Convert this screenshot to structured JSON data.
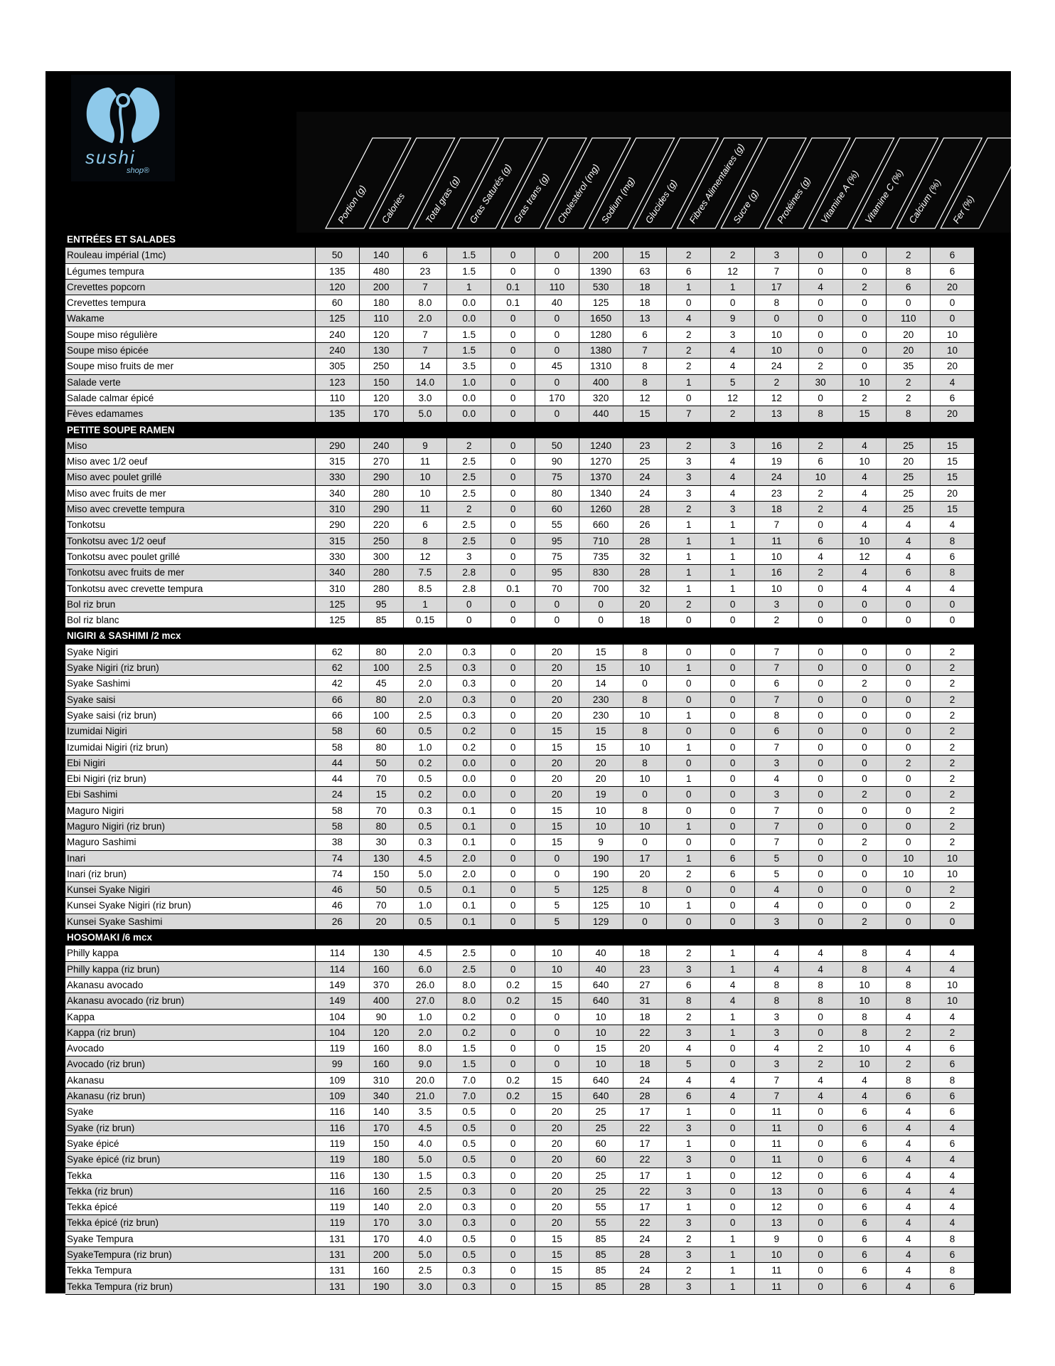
{
  "brand": {
    "logo_text": "sushi",
    "logo_subtext": "shop®",
    "logo_color": "#8ec9ea"
  },
  "columns": [
    "Portion (g)",
    "Calories",
    "Total gras (g)",
    "Gras Saturés (g)",
    "Gras trans (g)",
    "Cholestérol (mg)",
    "Sodium (mg)",
    "Glucides (g)",
    "Fibres Alimentaires (g)",
    "Sucre (g)",
    "Protéines (g)",
    "Vitamine A (%)",
    "Vitamine C (%)",
    "Calcium (%)",
    "Fer (%)"
  ],
  "sections": [
    {
      "title": "ENTRÉES ET SALADES",
      "rows": [
        [
          "Rouleau impérial (1mc)",
          "50",
          "140",
          "6",
          "1.5",
          "0",
          "0",
          "200",
          "15",
          "2",
          "2",
          "3",
          "0",
          "0",
          "2",
          "6"
        ],
        [
          "Légumes tempura",
          "135",
          "480",
          "23",
          "1.5",
          "0",
          "0",
          "1390",
          "63",
          "6",
          "12",
          "7",
          "0",
          "0",
          "8",
          "6"
        ],
        [
          "Crevettes popcorn",
          "120",
          "200",
          "7",
          "1",
          "0.1",
          "110",
          "530",
          "18",
          "1",
          "1",
          "17",
          "4",
          "2",
          "6",
          "20"
        ],
        [
          "Crevettes tempura",
          "60",
          "180",
          "8.0",
          "0.0",
          "0.1",
          "40",
          "125",
          "18",
          "0",
          "0",
          "8",
          "0",
          "0",
          "0",
          "0"
        ],
        [
          "Wakame",
          "125",
          "110",
          "2.0",
          "0.0",
          "0",
          "0",
          "1650",
          "13",
          "4",
          "9",
          "0",
          "0",
          "0",
          "110",
          "0"
        ],
        [
          "Soupe miso régulière",
          "240",
          "120",
          "7",
          "1.5",
          "0",
          "0",
          "1280",
          "6",
          "2",
          "3",
          "10",
          "0",
          "0",
          "20",
          "10"
        ],
        [
          "Soupe miso épicée",
          "240",
          "130",
          "7",
          "1.5",
          "0",
          "0",
          "1380",
          "7",
          "2",
          "4",
          "10",
          "0",
          "0",
          "20",
          "10"
        ],
        [
          "Soupe miso fruits de mer",
          "305",
          "250",
          "14",
          "3.5",
          "0",
          "45",
          "1310",
          "8",
          "2",
          "4",
          "24",
          "2",
          "0",
          "35",
          "20"
        ],
        [
          "Salade verte",
          "123",
          "150",
          "14.0",
          "1.0",
          "0",
          "0",
          "400",
          "8",
          "1",
          "5",
          "2",
          "30",
          "10",
          "2",
          "4"
        ],
        [
          "Salade calmar épicé",
          "110",
          "120",
          "3.0",
          "0.0",
          "0",
          "170",
          "320",
          "12",
          "0",
          "12",
          "12",
          "0",
          "2",
          "2",
          "6"
        ],
        [
          "Fèves edamames",
          "135",
          "170",
          "5.0",
          "0.0",
          "0",
          "0",
          "440",
          "15",
          "7",
          "2",
          "13",
          "8",
          "15",
          "8",
          "20"
        ]
      ]
    },
    {
      "title": "PETITE SOUPE RAMEN",
      "rows": [
        [
          "Miso",
          "290",
          "240",
          "9",
          "2",
          "0",
          "50",
          "1240",
          "23",
          "2",
          "3",
          "16",
          "2",
          "4",
          "25",
          "15"
        ],
        [
          "Miso avec 1/2 oeuf",
          "315",
          "270",
          "11",
          "2.5",
          "0",
          "90",
          "1270",
          "25",
          "3",
          "4",
          "19",
          "6",
          "10",
          "20",
          "15"
        ],
        [
          "Miso avec poulet grillé",
          "330",
          "290",
          "10",
          "2.5",
          "0",
          "75",
          "1370",
          "24",
          "3",
          "4",
          "24",
          "10",
          "4",
          "25",
          "15"
        ],
        [
          "Miso avec fruits de mer",
          "340",
          "280",
          "10",
          "2.5",
          "0",
          "80",
          "1340",
          "24",
          "3",
          "4",
          "23",
          "2",
          "4",
          "25",
          "20"
        ],
        [
          "Miso avec crevette tempura",
          "310",
          "290",
          "11",
          "2",
          "0",
          "60",
          "1260",
          "28",
          "2",
          "3",
          "18",
          "2",
          "4",
          "25",
          "15"
        ],
        [
          "Tonkotsu",
          "290",
          "220",
          "6",
          "2.5",
          "0",
          "55",
          "660",
          "26",
          "1",
          "1",
          "7",
          "0",
          "4",
          "4",
          "4"
        ],
        [
          "Tonkotsu avec 1/2 oeuf",
          "315",
          "250",
          "8",
          "2.5",
          "0",
          "95",
          "710",
          "28",
          "1",
          "1",
          "11",
          "6",
          "10",
          "4",
          "8"
        ],
        [
          "Tonkotsu avec poulet grillé",
          "330",
          "300",
          "12",
          "3",
          "0",
          "75",
          "735",
          "32",
          "1",
          "1",
          "10",
          "4",
          "12",
          "4",
          "6"
        ],
        [
          "Tonkotsu avec fruits de mer",
          "340",
          "280",
          "7.5",
          "2.8",
          "0",
          "95",
          "830",
          "28",
          "1",
          "1",
          "16",
          "2",
          "4",
          "6",
          "8"
        ],
        [
          "Tonkotsu avec crevette tempura",
          "310",
          "280",
          "8.5",
          "2.8",
          "0.1",
          "70",
          "700",
          "32",
          "1",
          "1",
          "10",
          "0",
          "4",
          "4",
          "4"
        ],
        [
          "Bol riz brun",
          "125",
          "95",
          "1",
          "0",
          "0",
          "0",
          "0",
          "20",
          "2",
          "0",
          "3",
          "0",
          "0",
          "0",
          "0"
        ],
        [
          "Bol riz blanc",
          "125",
          "85",
          "0.15",
          "0",
          "0",
          "0",
          "0",
          "18",
          "0",
          "0",
          "2",
          "0",
          "0",
          "0",
          "0"
        ]
      ]
    },
    {
      "title": "NIGIRI & SASHIMI /2 mcx",
      "rows": [
        [
          "Syake Nigiri",
          "62",
          "80",
          "2.0",
          "0.3",
          "0",
          "20",
          "15",
          "8",
          "0",
          "0",
          "7",
          "0",
          "0",
          "0",
          "2"
        ],
        [
          "Syake Nigiri (riz brun)",
          "62",
          "100",
          "2.5",
          "0.3",
          "0",
          "20",
          "15",
          "10",
          "1",
          "0",
          "7",
          "0",
          "0",
          "0",
          "2"
        ],
        [
          "Syake Sashimi",
          "42",
          "45",
          "2.0",
          "0.3",
          "0",
          "20",
          "14",
          "0",
          "0",
          "0",
          "6",
          "0",
          "2",
          "0",
          "2"
        ],
        [
          "Syake saisi",
          "66",
          "80",
          "2.0",
          "0.3",
          "0",
          "20",
          "230",
          "8",
          "0",
          "0",
          "7",
          "0",
          "0",
          "0",
          "2"
        ],
        [
          "Syake saisi   (riz brun)",
          "66",
          "100",
          "2.5",
          "0.3",
          "0",
          "20",
          "230",
          "10",
          "1",
          "0",
          "8",
          "0",
          "0",
          "0",
          "2"
        ],
        [
          "Izumidai Nigiri",
          "58",
          "60",
          "0.5",
          "0.2",
          "0",
          "15",
          "15",
          "8",
          "0",
          "0",
          "6",
          "0",
          "0",
          "0",
          "2"
        ],
        [
          "Izumidai Nigiri (riz brun)",
          "58",
          "80",
          "1.0",
          "0.2",
          "0",
          "15",
          "15",
          "10",
          "1",
          "0",
          "7",
          "0",
          "0",
          "0",
          "2"
        ],
        [
          "Ebi Nigiri",
          "44",
          "50",
          "0.2",
          "0.0",
          "0",
          "20",
          "20",
          "8",
          "0",
          "0",
          "3",
          "0",
          "0",
          "2",
          "2"
        ],
        [
          "Ebi Nigiri (riz brun)",
          "44",
          "70",
          "0.5",
          "0.0",
          "0",
          "20",
          "20",
          "10",
          "1",
          "0",
          "4",
          "0",
          "0",
          "0",
          "2"
        ],
        [
          "Ebi Sashimi",
          "24",
          "15",
          "0.2",
          "0.0",
          "0",
          "20",
          "19",
          "0",
          "0",
          "0",
          "3",
          "0",
          "2",
          "0",
          "2"
        ],
        [
          "Maguro Nigiri",
          "58",
          "70",
          "0.3",
          "0.1",
          "0",
          "15",
          "10",
          "8",
          "0",
          "0",
          "7",
          "0",
          "0",
          "0",
          "2"
        ],
        [
          "Maguro Nigiri (riz brun)",
          "58",
          "80",
          "0.5",
          "0.1",
          "0",
          "15",
          "10",
          "10",
          "1",
          "0",
          "7",
          "0",
          "0",
          "0",
          "2"
        ],
        [
          "Maguro Sashimi",
          "38",
          "30",
          "0.3",
          "0.1",
          "0",
          "15",
          "9",
          "0",
          "0",
          "0",
          "7",
          "0",
          "2",
          "0",
          "2"
        ],
        [
          "Inari",
          "74",
          "130",
          "4.5",
          "2.0",
          "0",
          "0",
          "190",
          "17",
          "1",
          "6",
          "5",
          "0",
          "0",
          "10",
          "10"
        ],
        [
          "Inari (riz brun)",
          "74",
          "150",
          "5.0",
          "2.0",
          "0",
          "0",
          "190",
          "20",
          "2",
          "6",
          "5",
          "0",
          "0",
          "10",
          "10"
        ],
        [
          "Kunsei Syake Nigiri",
          "46",
          "50",
          "0.5",
          "0.1",
          "0",
          "5",
          "125",
          "8",
          "0",
          "0",
          "4",
          "0",
          "0",
          "0",
          "2"
        ],
        [
          "Kunsei Syake Nigiri (riz brun)",
          "46",
          "70",
          "1.0",
          "0.1",
          "0",
          "5",
          "125",
          "10",
          "1",
          "0",
          "4",
          "0",
          "0",
          "0",
          "2"
        ],
        [
          "Kunsei Syake Sashimi",
          "26",
          "20",
          "0.5",
          "0.1",
          "0",
          "5",
          "129",
          "0",
          "0",
          "0",
          "3",
          "0",
          "2",
          "0",
          "0"
        ]
      ]
    },
    {
      "title": "HOSOMAKI /6 mcx",
      "rows": [
        [
          "Philly kappa",
          "114",
          "130",
          "4.5",
          "2.5",
          "0",
          "10",
          "40",
          "18",
          "2",
          "1",
          "4",
          "4",
          "8",
          "4",
          "4"
        ],
        [
          "Philly kappa  (riz brun)",
          "114",
          "160",
          "6.0",
          "2.5",
          "0",
          "10",
          "40",
          "23",
          "3",
          "1",
          "4",
          "4",
          "8",
          "4",
          "4"
        ],
        [
          "Akanasu avocado",
          "149",
          "370",
          "26.0",
          "8.0",
          "0.2",
          "15",
          "640",
          "27",
          "6",
          "4",
          "8",
          "8",
          "10",
          "8",
          "10"
        ],
        [
          "Akanasu avocado (riz brun)",
          "149",
          "400",
          "27.0",
          "8.0",
          "0.2",
          "15",
          "640",
          "31",
          "8",
          "4",
          "8",
          "8",
          "10",
          "8",
          "10"
        ],
        [
          "Kappa",
          "104",
          "90",
          "1.0",
          "0.2",
          "0",
          "0",
          "10",
          "18",
          "2",
          "1",
          "3",
          "0",
          "8",
          "4",
          "4"
        ],
        [
          "Kappa (riz brun)",
          "104",
          "120",
          "2.0",
          "0.2",
          "0",
          "0",
          "10",
          "22",
          "3",
          "1",
          "3",
          "0",
          "8",
          "2",
          "2"
        ],
        [
          "Avocado",
          "119",
          "160",
          "8.0",
          "1.5",
          "0",
          "0",
          "15",
          "20",
          "4",
          "0",
          "4",
          "2",
          "10",
          "4",
          "6"
        ],
        [
          "Avocado (riz brun)",
          "99",
          "160",
          "9.0",
          "1.5",
          "0",
          "0",
          "10",
          "18",
          "5",
          "0",
          "3",
          "2",
          "10",
          "2",
          "6"
        ],
        [
          "Akanasu",
          "109",
          "310",
          "20.0",
          "7.0",
          "0.2",
          "15",
          "640",
          "24",
          "4",
          "4",
          "7",
          "4",
          "4",
          "8",
          "8"
        ],
        [
          "Akanasu (riz brun)",
          "109",
          "340",
          "21.0",
          "7.0",
          "0.2",
          "15",
          "640",
          "28",
          "6",
          "4",
          "7",
          "4",
          "4",
          "6",
          "6"
        ],
        [
          "Syake",
          "116",
          "140",
          "3.5",
          "0.5",
          "0",
          "20",
          "25",
          "17",
          "1",
          "0",
          "11",
          "0",
          "6",
          "4",
          "6"
        ],
        [
          "Syake (riz brun)",
          "116",
          "170",
          "4.5",
          "0.5",
          "0",
          "20",
          "25",
          "22",
          "3",
          "0",
          "11",
          "0",
          "6",
          "4",
          "4"
        ],
        [
          "Syake épicé",
          "119",
          "150",
          "4.0",
          "0.5",
          "0",
          "20",
          "60",
          "17",
          "1",
          "0",
          "11",
          "0",
          "6",
          "4",
          "6"
        ],
        [
          "Syake épicé (riz brun)",
          "119",
          "180",
          "5.0",
          "0.5",
          "0",
          "20",
          "60",
          "22",
          "3",
          "0",
          "11",
          "0",
          "6",
          "4",
          "4"
        ],
        [
          "Tekka",
          "116",
          "130",
          "1.5",
          "0.3",
          "0",
          "20",
          "25",
          "17",
          "1",
          "0",
          "12",
          "0",
          "6",
          "4",
          "4"
        ],
        [
          "Tekka (riz brun)",
          "116",
          "160",
          "2.5",
          "0.3",
          "0",
          "20",
          "25",
          "22",
          "3",
          "0",
          "13",
          "0",
          "6",
          "4",
          "4"
        ],
        [
          "Tekka épicé",
          "119",
          "140",
          "2.0",
          "0.3",
          "0",
          "20",
          "55",
          "17",
          "1",
          "0",
          "12",
          "0",
          "6",
          "4",
          "4"
        ],
        [
          "Tekka épicé (riz brun)",
          "119",
          "170",
          "3.0",
          "0.3",
          "0",
          "20",
          "55",
          "22",
          "3",
          "0",
          "13",
          "0",
          "6",
          "4",
          "4"
        ],
        [
          "Syake Tempura",
          "131",
          "170",
          "4.0",
          "0.5",
          "0",
          "15",
          "85",
          "24",
          "2",
          "1",
          "9",
          "0",
          "6",
          "4",
          "8"
        ],
        [
          "SyakeTempura (riz brun)",
          "131",
          "200",
          "5.0",
          "0.5",
          "0",
          "15",
          "85",
          "28",
          "3",
          "1",
          "10",
          "0",
          "6",
          "4",
          "6"
        ],
        [
          "Tekka Tempura",
          "131",
          "160",
          "2.5",
          "0.3",
          "0",
          "15",
          "85",
          "24",
          "2",
          "1",
          "11",
          "0",
          "6",
          "4",
          "8"
        ],
        [
          "Tekka Tempura (riz brun)",
          "131",
          "190",
          "3.0",
          "0.3",
          "0",
          "15",
          "85",
          "28",
          "3",
          "1",
          "11",
          "0",
          "6",
          "4",
          "6"
        ]
      ]
    }
  ]
}
